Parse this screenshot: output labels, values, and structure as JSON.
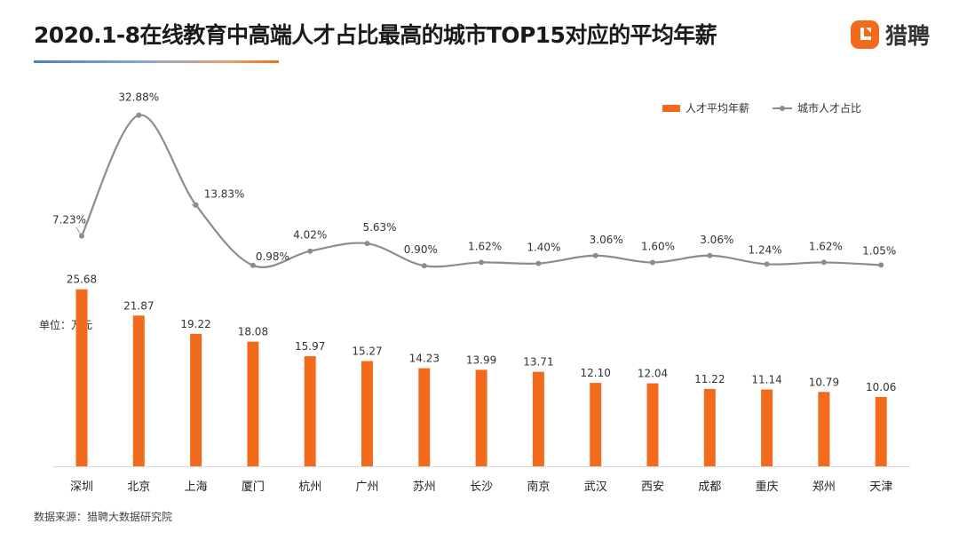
{
  "header": {
    "title": "2020.1-8在线教育中高端人才占比最高的城市TOP15对应的平均年薪",
    "brand_name": "猎聘"
  },
  "unit_label": "单位：万元",
  "source_label": "数据来源：猎聘大数据研究院",
  "colors": {
    "bar": "#f26b1d",
    "line": "#8c8c8c",
    "brand": "#f26b1d"
  },
  "chart_data": {
    "type": "bar",
    "categories": [
      "深圳",
      "北京",
      "上海",
      "厦门",
      "杭州",
      "广州",
      "苏州",
      "长沙",
      "南京",
      "武汉",
      "西安",
      "成都",
      "重庆",
      "郑州",
      "天津"
    ],
    "series": [
      {
        "name": "人才平均年薪",
        "type": "bar",
        "values": [
          25.68,
          21.87,
          19.22,
          18.08,
          15.97,
          15.27,
          14.23,
          13.99,
          13.71,
          12.1,
          12.04,
          11.22,
          11.14,
          10.79,
          10.06
        ],
        "labels": [
          "25.68",
          "21.87",
          "19.22",
          "18.08",
          "15.97",
          "15.27",
          "14.23",
          "13.99",
          "13.71",
          "12.10",
          "12.04",
          "11.22",
          "11.14",
          "10.79",
          "10.06"
        ]
      },
      {
        "name": "城市人才占比",
        "type": "line",
        "smooth": true,
        "values": [
          7.23,
          32.88,
          13.83,
          0.98,
          4.02,
          5.63,
          0.9,
          1.62,
          1.4,
          3.06,
          1.6,
          3.06,
          1.24,
          1.62,
          1.05
        ],
        "labels": [
          "7.23%",
          "32.88%",
          "13.83%",
          "0.98%",
          "4.02%",
          "5.63%",
          "0.90%",
          "1.62%",
          "1.40%",
          "3.06%",
          "1.60%",
          "3.06%",
          "1.24%",
          "1.62%",
          "1.05%"
        ]
      }
    ],
    "legend_position": "top-right",
    "grid": false
  }
}
